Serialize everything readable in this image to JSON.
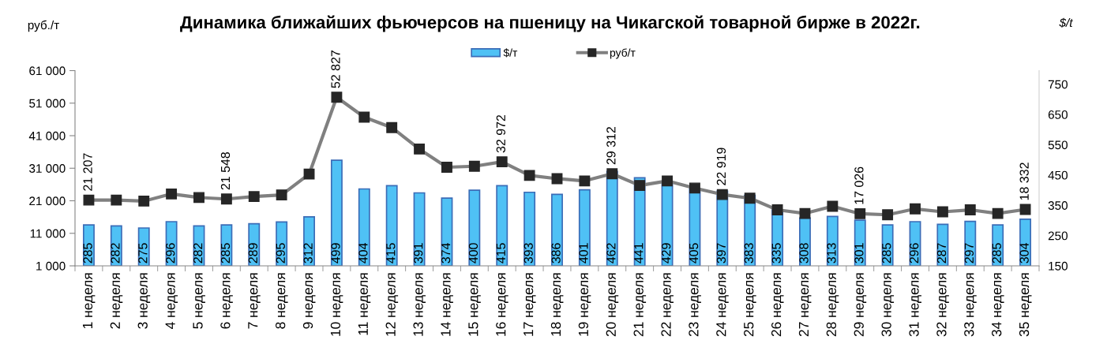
{
  "chart_data": {
    "type": "bar",
    "title": "Динамика ближайших фьючерсов на пшеницу на Чикагской товарной бирже в 2022г.",
    "ylabel": "руб./т",
    "y2label": "$/t",
    "categories": [
      "1 неделя",
      "2 неделя",
      "3 неделя",
      "4 неделя",
      "5 неделя",
      "6 неделя",
      "7 неделя",
      "8 неделя",
      "9 неделя",
      "10 неделя",
      "11 неделя",
      "12 неделя",
      "13 неделя",
      "14 неделя",
      "15 неделя",
      "16 неделя",
      "17 неделя",
      "18 неделя",
      "19 неделя",
      "20 неделя",
      "21 неделя",
      "22 неделя",
      "23 неделя",
      "24 неделя",
      "25 неделя",
      "26 неделя",
      "27 неделя",
      "28 неделя",
      "29 неделя",
      "30 неделя",
      "31 неделя",
      "32 неделя",
      "33 неделя",
      "34 неделя",
      "35 неделя"
    ],
    "series": [
      {
        "name": "$/т",
        "axis": "y2",
        "color": "#4fc1f5",
        "values": [
          285,
          282,
          275,
          296,
          282,
          285,
          289,
          295,
          312,
          499,
          404,
          415,
          391,
          374,
          400,
          415,
          393,
          386,
          401,
          462,
          441,
          429,
          405,
          397,
          383,
          335,
          308,
          313,
          301,
          285,
          296,
          287,
          297,
          285,
          304
        ],
        "value_labels": [
          "285",
          "282",
          "275",
          "296",
          "282",
          "285",
          "289",
          "295",
          "312",
          "499",
          "404",
          "415",
          "391",
          "374",
          "400",
          "415",
          "393",
          "386",
          "401",
          "462",
          "441",
          "429",
          "405",
          "397",
          "383",
          "335",
          "308",
          "313",
          "301",
          "285",
          "296",
          "287",
          "297",
          "285",
          "304"
        ]
      },
      {
        "name": "руб/т",
        "type": "line",
        "color": "#808080",
        "values": [
          21207,
          21200,
          20900,
          23100,
          22000,
          21548,
          22300,
          22800,
          29200,
          52827,
          46700,
          43500,
          36900,
          31300,
          31600,
          32972,
          28800,
          27800,
          27100,
          29312,
          25700,
          27100,
          24900,
          22919,
          21800,
          18200,
          17100,
          19300,
          17026,
          16700,
          18500,
          17600,
          18200,
          17100,
          18332
        ],
        "value_labels": [
          "21 207",
          null,
          null,
          null,
          null,
          "21 548",
          null,
          null,
          null,
          "52 827",
          null,
          null,
          null,
          null,
          null,
          "32 972",
          null,
          null,
          null,
          "29 312",
          null,
          null,
          null,
          "22 919",
          null,
          null,
          null,
          null,
          "17 026",
          null,
          null,
          null,
          null,
          null,
          "18 332"
        ]
      }
    ],
    "ylim": [
      1000,
      61000
    ],
    "yticks": [
      {
        "value": 1000,
        "label": "1 000"
      },
      {
        "value": 11000,
        "label": "11 000"
      },
      {
        "value": 21000,
        "label": "21 000"
      },
      {
        "value": 31000,
        "label": "31 000"
      },
      {
        "value": 41000,
        "label": "41 000"
      },
      {
        "value": 51000,
        "label": "51 000"
      },
      {
        "value": 61000,
        "label": "61 000"
      }
    ],
    "y2lim": [
      150,
      795
    ],
    "y2ticks": [
      150,
      250,
      350,
      450,
      550,
      650,
      750
    ],
    "marker": "square",
    "legend": "top",
    "grid": false
  }
}
